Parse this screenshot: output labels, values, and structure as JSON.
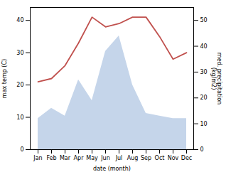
{
  "chart_data": {
    "type": "line",
    "xlabel": "date (month)",
    "ylabel": "max temp (C)",
    "y2label": "med. precipitation\n(kg/m2)",
    "categories": [
      "Jan",
      "Feb",
      "Mar",
      "Apr",
      "May",
      "Jun",
      "Jul",
      "Aug",
      "Sep",
      "Oct",
      "Nov",
      "Dec"
    ],
    "series": [
      {
        "type": "line",
        "color": "#c0504d",
        "values": [
          21,
          22,
          26,
          33,
          41,
          38,
          39,
          41,
          41,
          35,
          28,
          30
        ]
      },
      {
        "type": "area",
        "axis": "y2",
        "color": "#c5d5ea",
        "values": [
          12,
          16,
          13,
          27,
          19,
          38,
          44,
          25,
          14,
          13,
          12,
          12
        ]
      }
    ],
    "ylim": [
      0,
      44
    ],
    "yticks": [
      0,
      10,
      20,
      30,
      40
    ],
    "y2lim": [
      0,
      55
    ],
    "y2ticks": [
      0,
      10,
      20,
      30,
      40,
      50
    ],
    "grid": false
  }
}
